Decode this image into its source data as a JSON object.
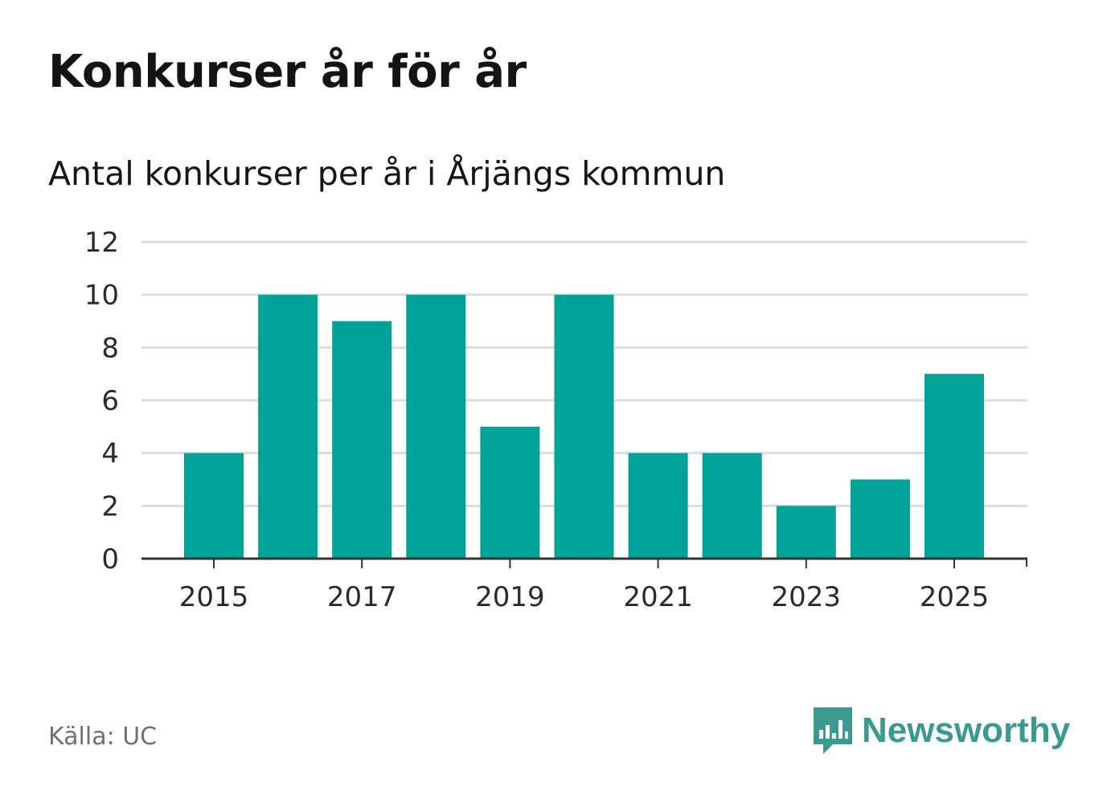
{
  "header": {
    "title": "Konkurser år för år",
    "subtitle": "Antal konkurser per år i Årjängs kommun"
  },
  "footer": {
    "source": "Källa: UC",
    "brand": "Newsworthy"
  },
  "colors": {
    "bar": "#00a397",
    "grid": "#dddddd",
    "axis": "#333333",
    "brand": "#3a9a92"
  },
  "icons": {
    "brand_logo": "newsworthy-logo-icon"
  },
  "chart_data": {
    "type": "bar",
    "title": "Konkurser år för år",
    "subtitle": "Antal konkurser per år i Årjängs kommun",
    "xlabel": "",
    "ylabel": "",
    "categories": [
      "2015",
      "2016",
      "2017",
      "2018",
      "2019",
      "2020",
      "2021",
      "2022",
      "2023",
      "2024",
      "2025"
    ],
    "values": [
      4,
      10,
      9,
      10,
      5,
      10,
      4,
      4,
      2,
      3,
      7
    ],
    "ylim": [
      0,
      12
    ],
    "yticks": [
      "0",
      "2",
      "4",
      "6",
      "8",
      "10",
      "12"
    ],
    "xticks": [
      "2015",
      "2017",
      "2019",
      "2021",
      "2023",
      "2025"
    ],
    "grid": true,
    "legend": "none"
  }
}
